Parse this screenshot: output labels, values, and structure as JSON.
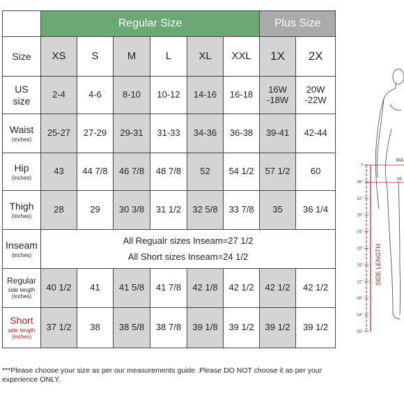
{
  "header": {
    "regular": "Regular Size",
    "plus": "Plus Size"
  },
  "rows": {
    "size": {
      "label": "Size",
      "sub": "",
      "values": [
        "XS",
        "S",
        "M",
        "L",
        "XL",
        "XXL",
        "1X",
        "2X"
      ]
    },
    "us": {
      "label": "US size",
      "sub": "",
      "values": [
        "2-4",
        "4-6",
        "8-10",
        "10-12",
        "14-16",
        "16-18",
        "16W -18W",
        "20W -22W"
      ]
    },
    "waist": {
      "label": "Waist",
      "sub": "(inches)",
      "values": [
        "25-27",
        "27-29",
        "29-31",
        "31-33",
        "34-36",
        "36-38",
        "39-41",
        "42-44"
      ]
    },
    "hip": {
      "label": "Hip",
      "sub": "(inches)",
      "values": [
        "43",
        "44 7/8",
        "46 7/8",
        "48 7/8",
        "52",
        "54 1/2",
        "57 1/2",
        "60"
      ]
    },
    "thigh": {
      "label": "Thigh",
      "sub": "(inches)",
      "values": [
        "28",
        "29",
        "30 3/8",
        "31 1/2",
        "32 5/8",
        "33 7/8",
        "35",
        "36 1/4"
      ]
    },
    "inseam": {
      "label": "Inseam",
      "sub": "(inches)",
      "line1": "All Regualr sizes Inseam=27 1/2",
      "line2": "All Short sizes Inseam=24 1/2"
    },
    "regular": {
      "label": "Regular",
      "sub": "side length (inches)",
      "values": [
        "40 1/2",
        "41",
        "41 5/8",
        "41 7/8",
        "42 1/8",
        "42 1/2",
        "42 1/2",
        "42 1/2"
      ]
    },
    "short": {
      "label": "Short",
      "sub": "side length (inches)",
      "values": [
        "37 1/2",
        "38",
        "38 5/8",
        "38 7/8",
        "39 1/8",
        "39 1/2",
        "39 1/2",
        "39 1/2"
      ]
    }
  },
  "note": "***Please choose your size as per our measurements guide .Please DO NOT choose it as per your experience ONLY.",
  "figure": {
    "ticks": [
      "?",
      "36\"",
      "32\"",
      "28\"",
      "24\"",
      "20\"",
      "16\"",
      "12\"",
      "08\"",
      "04\"",
      "00\""
    ],
    "waist_label": "WA",
    "hip_label": "HI",
    "side_label": "SIDE LENGTH"
  },
  "colors": {
    "regular_header": "#6aa876",
    "plus_header": "#aaaaaa",
    "shaded_cell": "#d4d4d4",
    "accent_red": "#a0212a"
  }
}
